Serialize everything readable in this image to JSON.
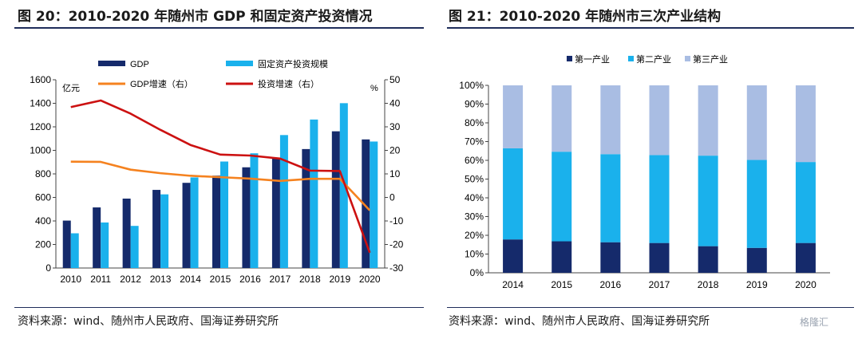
{
  "left_title": "图 20：2010-2020 年随州市 GDP 和固定资产投资情况",
  "right_title": "图 21：2010-2020 年随州市三次产业结构",
  "left_source": "资料来源：wind、随州市人民政府、国海证券研究所",
  "right_source": "资料来源：wind、随州市人民政府、国海证券研究所",
  "watermark": "格隆汇",
  "chart_data": [
    {
      "type": "bar",
      "x": [
        "2010",
        "2011",
        "2012",
        "2013",
        "2014",
        "2015",
        "2016",
        "2017",
        "2018",
        "2019",
        "2020"
      ],
      "left_unit": "亿元",
      "right_unit": "%",
      "ylim_left": [
        0,
        1600
      ],
      "yticks_left": [
        "0",
        "200",
        "400",
        "600",
        "800",
        "1000",
        "1200",
        "1400",
        "1600"
      ],
      "ylim_right": [
        -30,
        50
      ],
      "yticks_right": [
        "-30",
        "-20",
        "-10",
        "0",
        "10",
        "20",
        "30",
        "40",
        "50"
      ],
      "grid": false,
      "legend": "top",
      "series": [
        {
          "name": "GDP",
          "kind": "bar",
          "axis": "left",
          "color": "#152a6b",
          "values": [
            403,
            515,
            590,
            664,
            724,
            785,
            856,
            932,
            1011,
            1162,
            1093
          ]
        },
        {
          "name": "固定资产投资规模",
          "kind": "bar",
          "axis": "left",
          "color": "#1ab1ec",
          "values": [
            295,
            387,
            358,
            626,
            770,
            905,
            975,
            1130,
            1262,
            1401,
            1075
          ]
        },
        {
          "name": "GDP增速（右）",
          "kind": "line",
          "axis": "right",
          "color": "#f5821f",
          "values": [
            15.2,
            15.1,
            11.8,
            10.3,
            9.2,
            8.6,
            8.0,
            7.0,
            7.9,
            7.9,
            -5.5
          ]
        },
        {
          "name": "投资增速（右）",
          "kind": "line",
          "axis": "right",
          "color": "#cc1111",
          "values": [
            38.4,
            41.2,
            35.6,
            28.7,
            22.3,
            18.2,
            17.8,
            16.5,
            11.4,
            11.2,
            -23.5
          ]
        }
      ]
    },
    {
      "type": "bar",
      "stacked": true,
      "x": [
        "2014",
        "2015",
        "2016",
        "2017",
        "2018",
        "2019",
        "2020"
      ],
      "ylim": [
        0,
        100
      ],
      "yticks": [
        "0%",
        "10%",
        "20%",
        "30%",
        "40%",
        "50%",
        "60%",
        "70%",
        "80%",
        "90%",
        "100%"
      ],
      "grid": false,
      "legend": "top",
      "series": [
        {
          "name": "第一产业",
          "color": "#152a6b",
          "values": [
            17.8,
            16.8,
            16.3,
            15.9,
            14.2,
            13.3,
            15.9
          ]
        },
        {
          "name": "第二产业",
          "color": "#1ab1ec",
          "values": [
            48.6,
            47.8,
            47.0,
            46.9,
            48.3,
            46.9,
            43.2
          ]
        },
        {
          "name": "第三产业",
          "color": "#a9bde3",
          "values": [
            33.6,
            35.4,
            36.7,
            37.2,
            37.5,
            39.8,
            40.9
          ]
        }
      ]
    }
  ]
}
